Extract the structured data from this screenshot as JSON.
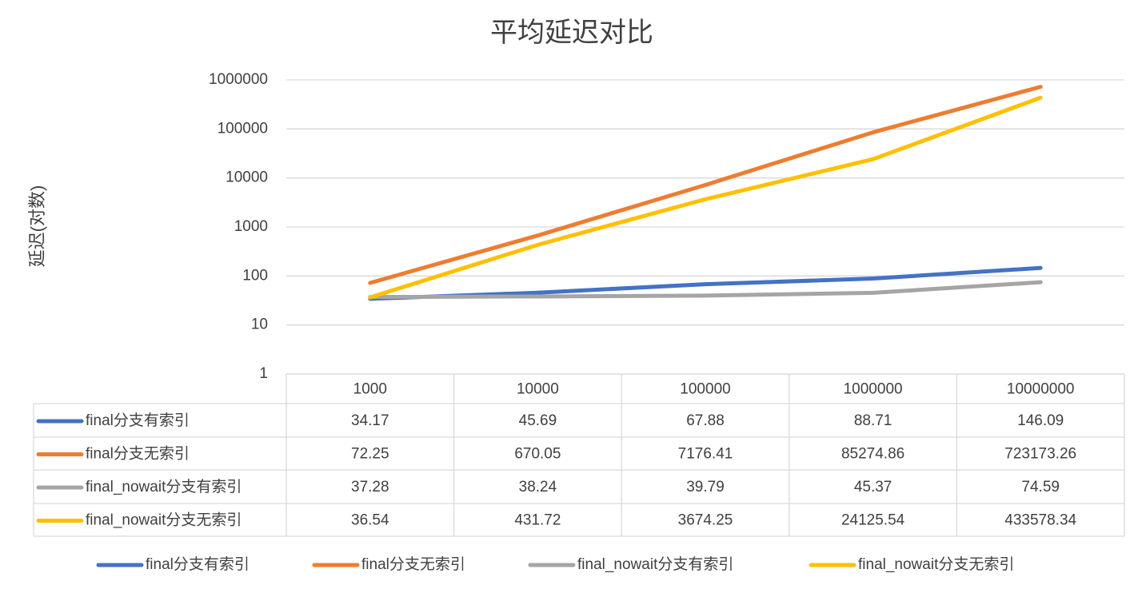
{
  "chart_data": {
    "type": "line",
    "title": "平均延迟对比",
    "y_label": "延迟(对数)",
    "categories": [
      "1000",
      "10000",
      "100000",
      "1000000",
      "10000000"
    ],
    "series": [
      {
        "name": "final分支有索引",
        "color": "#4472c4",
        "values": [
          34.17,
          45.69,
          67.88,
          88.71,
          146.09
        ]
      },
      {
        "name": "final分支无索引",
        "color": "#ed7d31",
        "values": [
          72.25,
          670.05,
          7176.41,
          85274.86,
          723173.26
        ]
      },
      {
        "name": "final_nowait分支有索引",
        "color": "#a5a5a5",
        "values": [
          37.28,
          38.24,
          39.79,
          45.37,
          74.59
        ]
      },
      {
        "name": "final_nowait分支无索引",
        "color": "#ffc000",
        "values": [
          36.54,
          431.72,
          3674.25,
          24125.54,
          433578.34
        ]
      }
    ],
    "ylim": [
      1,
      1000000
    ],
    "yticks": [
      1,
      10,
      100,
      1000,
      10000,
      100000,
      1000000
    ],
    "log_scale": true,
    "grid": true,
    "legend": "bottom",
    "data_table": true
  }
}
